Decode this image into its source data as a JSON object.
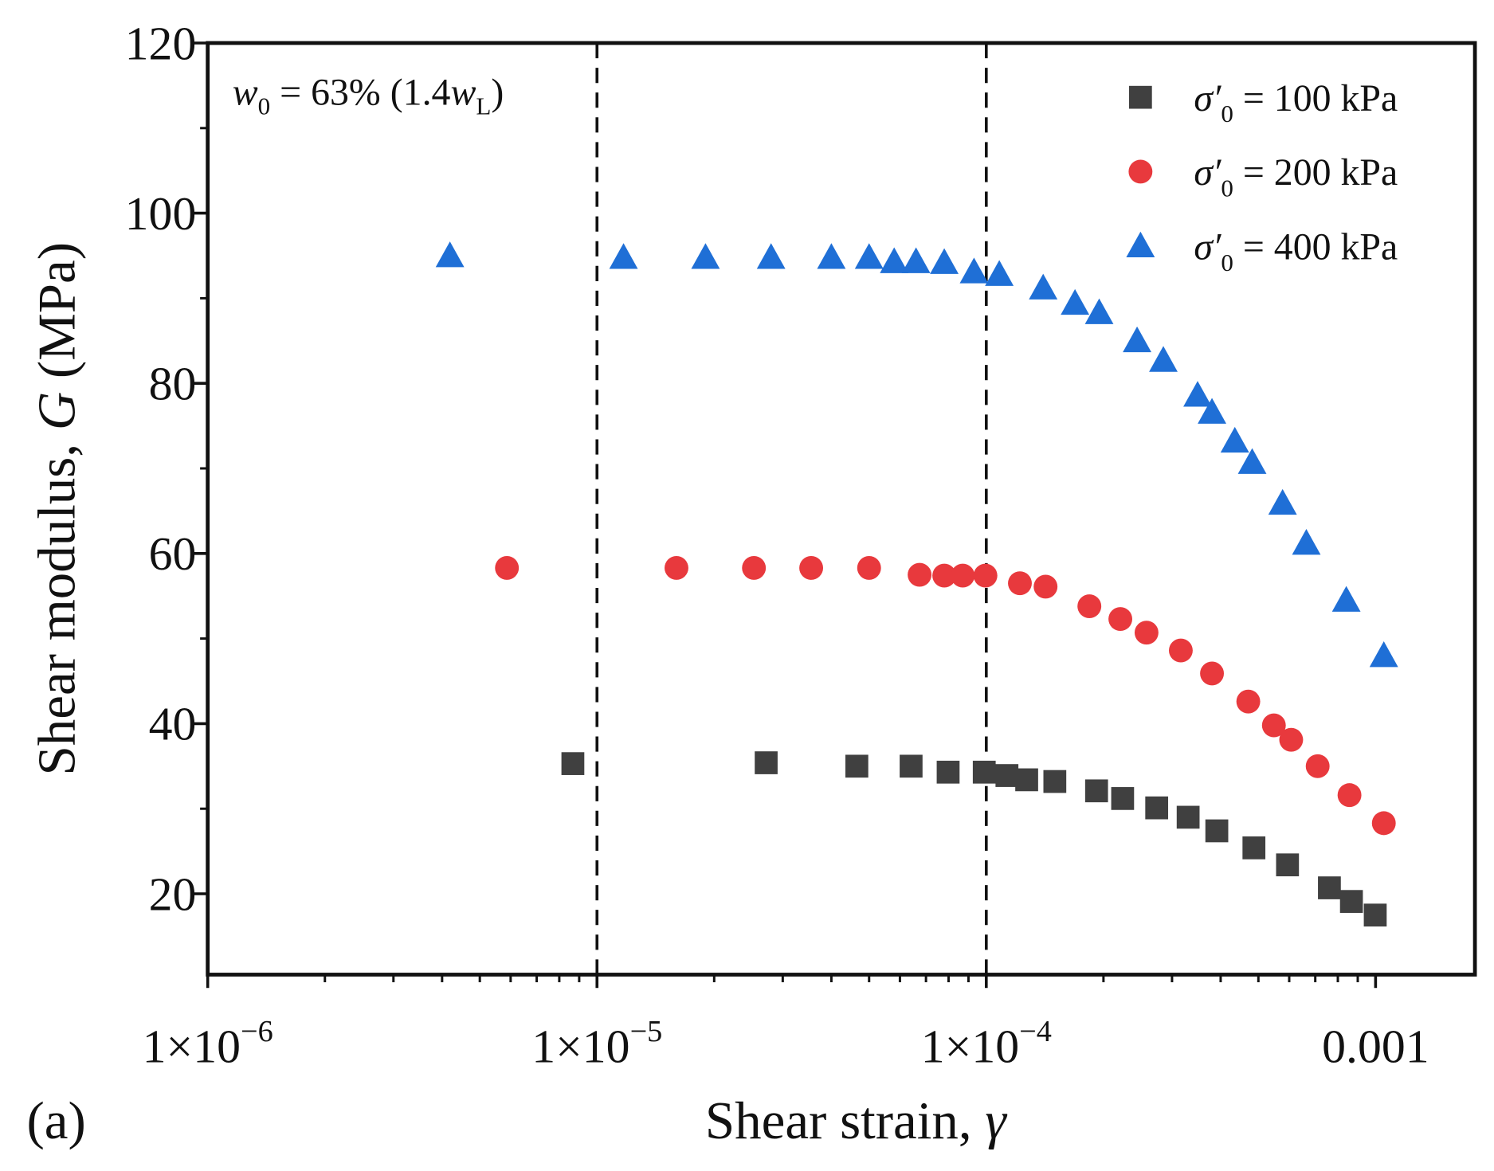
{
  "chart_data": {
    "type": "scatter",
    "title": "",
    "panel_label": "(a)",
    "annotation": "w0 = 63% (1.4wL)",
    "annotation_parts": {
      "var": "w",
      "sub": "0",
      "mid": " = 63% (1.4",
      "var2": "w",
      "sub2": "L",
      "end": ")"
    },
    "xlabel": "Shear strain, γ",
    "xlabel_parts": {
      "text": "Shear strain, ",
      "var": "γ"
    },
    "ylabel": "Shear modulus, G (MPa)",
    "ylabel_parts": {
      "text": "Shear modulus, ",
      "var": "G",
      "unit": " (MPa)"
    },
    "xscale": "log",
    "xlim": [
      1e-06,
      0.0018
    ],
    "ylim": [
      10.5,
      120
    ],
    "xticks": [
      {
        "value": 1e-06,
        "label": "1×10",
        "exp": "−6"
      },
      {
        "value": 1e-05,
        "label": "1×10",
        "exp": "−5"
      },
      {
        "value": 0.0001,
        "label": "1×10",
        "exp": "−4"
      },
      {
        "value": 0.001,
        "label": "0.001",
        "exp": ""
      }
    ],
    "yticks": [
      {
        "value": 20,
        "label": "20"
      },
      {
        "value": 40,
        "label": "40"
      },
      {
        "value": 60,
        "label": "60"
      },
      {
        "value": 80,
        "label": "80"
      },
      {
        "value": 100,
        "label": "100"
      },
      {
        "value": 120,
        "label": "120"
      }
    ],
    "vlines": [
      1e-05,
      0.0001
    ],
    "legend_position": "top-right",
    "grid": false,
    "series": [
      {
        "name": "σ'0 = 100 kPa",
        "sym": "σ′",
        "sub": "0",
        "rest": " = 100 kPa",
        "marker": "square",
        "color": "#404040",
        "x": [
          8.67e-06,
          2.72e-05,
          4.65e-05,
          6.41e-05,
          7.98e-05,
          9.88e-05,
          0.000113,
          0.000127,
          0.00015,
          0.000192,
          0.000224,
          0.000274,
          0.00033,
          0.000391,
          0.000487,
          0.000594,
          0.000761,
          0.000867,
          0.000998
        ],
        "y": [
          35.3,
          35.4,
          35.0,
          35.0,
          34.3,
          34.3,
          33.9,
          33.4,
          33.2,
          32.1,
          31.2,
          30.1,
          29.0,
          27.4,
          25.4,
          23.4,
          20.7,
          19.1,
          17.5
        ]
      },
      {
        "name": "σ'0 = 200 kPa",
        "sym": "σ′",
        "sub": "0",
        "rest": " = 200 kPa",
        "marker": "circle",
        "color": "#e8393d",
        "x": [
          5.87e-06,
          1.6e-05,
          2.53e-05,
          3.55e-05,
          5e-05,
          6.74e-05,
          7.8e-05,
          8.7e-05,
          9.95e-05,
          0.000122,
          0.000142,
          0.000184,
          0.000221,
          0.000258,
          0.000316,
          0.00038,
          0.000471,
          0.000548,
          0.000607,
          0.00071,
          0.000857,
          0.00105
        ],
        "y": [
          58.3,
          58.3,
          58.3,
          58.3,
          58.3,
          57.5,
          57.4,
          57.4,
          57.4,
          56.5,
          56.1,
          53.8,
          52.3,
          50.7,
          48.6,
          45.9,
          42.6,
          39.8,
          38.1,
          35.0,
          31.6,
          28.3
        ]
      },
      {
        "name": "σ'0 = 400 kPa",
        "sym": "σ′",
        "sub": "0",
        "rest": " = 400 kPa",
        "marker": "triangle",
        "color": "#1f6fd6",
        "x": [
          4.19e-06,
          1.17e-05,
          1.9e-05,
          2.8e-05,
          4e-05,
          5e-05,
          5.8e-05,
          6.6e-05,
          7.8e-05,
          9.3e-05,
          0.000108,
          0.00014,
          0.000169,
          0.000195,
          0.000244,
          0.000285,
          0.000349,
          0.00038,
          0.000435,
          0.000482,
          0.000577,
          0.000664,
          0.000841,
          0.00105
        ],
        "y": [
          95.0,
          94.8,
          94.8,
          94.8,
          94.8,
          94.8,
          94.3,
          94.3,
          94.2,
          93.1,
          92.8,
          91.2,
          89.4,
          88.3,
          85.0,
          82.7,
          78.6,
          76.6,
          73.2,
          70.7,
          65.9,
          61.2,
          54.5,
          48.0
        ]
      }
    ]
  }
}
